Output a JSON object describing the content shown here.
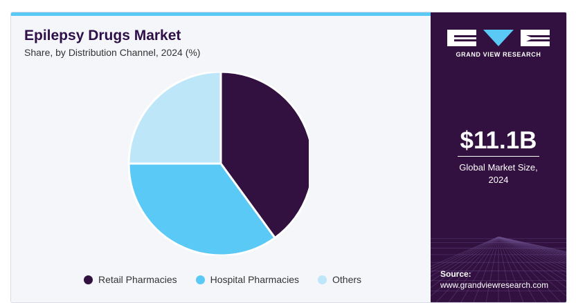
{
  "title": "Epilepsy Drugs Market",
  "subtitle": "Share, by Distribution Channel, 2024 (%)",
  "chart_data": {
    "type": "pie",
    "title": "Epilepsy Drugs Market",
    "subtitle": "Share, by Distribution Channel, 2024 (%)",
    "categories": [
      "Retail Pharmacies",
      "Hospital Pharmacies",
      "Others"
    ],
    "values": [
      40,
      35,
      25
    ],
    "colors": [
      "#32103f",
      "#5bc9f5",
      "#bde6f8"
    ],
    "legend_position": "bottom"
  },
  "sidebar": {
    "brand": "GRAND VIEW RESEARCH",
    "market_size": "$11.1B",
    "market_size_label_line1": "Global Market Size,",
    "market_size_label_line2": "2024",
    "source_label": "Source:",
    "source_url": "www.grandviewresearch.com"
  },
  "colors": {
    "accent": "#5bc9f5",
    "brand_dark": "#32103f",
    "panel_bg": "#f4f6f9"
  }
}
